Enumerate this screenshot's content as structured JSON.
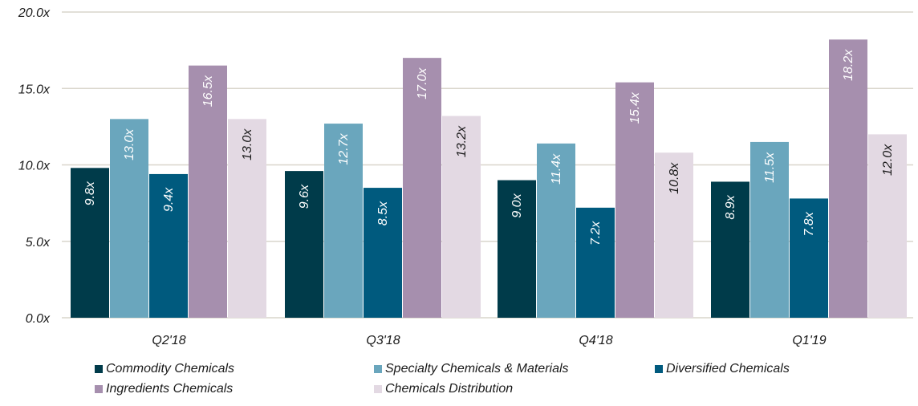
{
  "chart_data": {
    "type": "bar",
    "categories": [
      "Q2'18",
      "Q3'18",
      "Q4'18",
      "Q1'19"
    ],
    "series": [
      {
        "name": "Commodity Chemicals",
        "values": [
          9.8,
          9.6,
          9.0,
          8.9
        ],
        "labels": [
          "9.8x",
          "9.6x",
          "9.0x",
          "8.9x"
        ],
        "color": "#003b4a"
      },
      {
        "name": "Specialty Chemicals & Materials",
        "values": [
          13.0,
          12.7,
          11.4,
          11.5
        ],
        "labels": [
          "13.0x",
          "12.7x",
          "11.4x",
          "11.5x"
        ],
        "color": "#6aa6bd"
      },
      {
        "name": "Diversified Chemicals",
        "values": [
          9.4,
          8.5,
          7.2,
          7.8
        ],
        "labels": [
          "9.4x",
          "8.5x",
          "7.2x",
          "7.8x"
        ],
        "color": "#005a7e"
      },
      {
        "name": "Ingredients Chemicals",
        "values": [
          16.5,
          17.0,
          15.4,
          18.2
        ],
        "labels": [
          "16.5x",
          "17.0x",
          "15.4x",
          "18.2x"
        ],
        "color": "#a68fae"
      },
      {
        "name": "Chemicals Distribution",
        "values": [
          13.0,
          13.2,
          10.8,
          12.0
        ],
        "labels": [
          "13.0x",
          "13.2x",
          "10.8x",
          "12.0x"
        ],
        "color": "#e3d9e3"
      }
    ],
    "ylim": [
      0,
      20
    ],
    "yticks": [
      0,
      5,
      10,
      15,
      20
    ],
    "ytick_labels": [
      "0.0x",
      "5.0x",
      "10.0x",
      "15.0x",
      "20.0x"
    ],
    "grid": true,
    "legend_position": "bottom",
    "label_colors": {
      "dark": "#ffffff",
      "light": "#1a1a1a"
    },
    "gridline_color": "#d9d6cc"
  }
}
